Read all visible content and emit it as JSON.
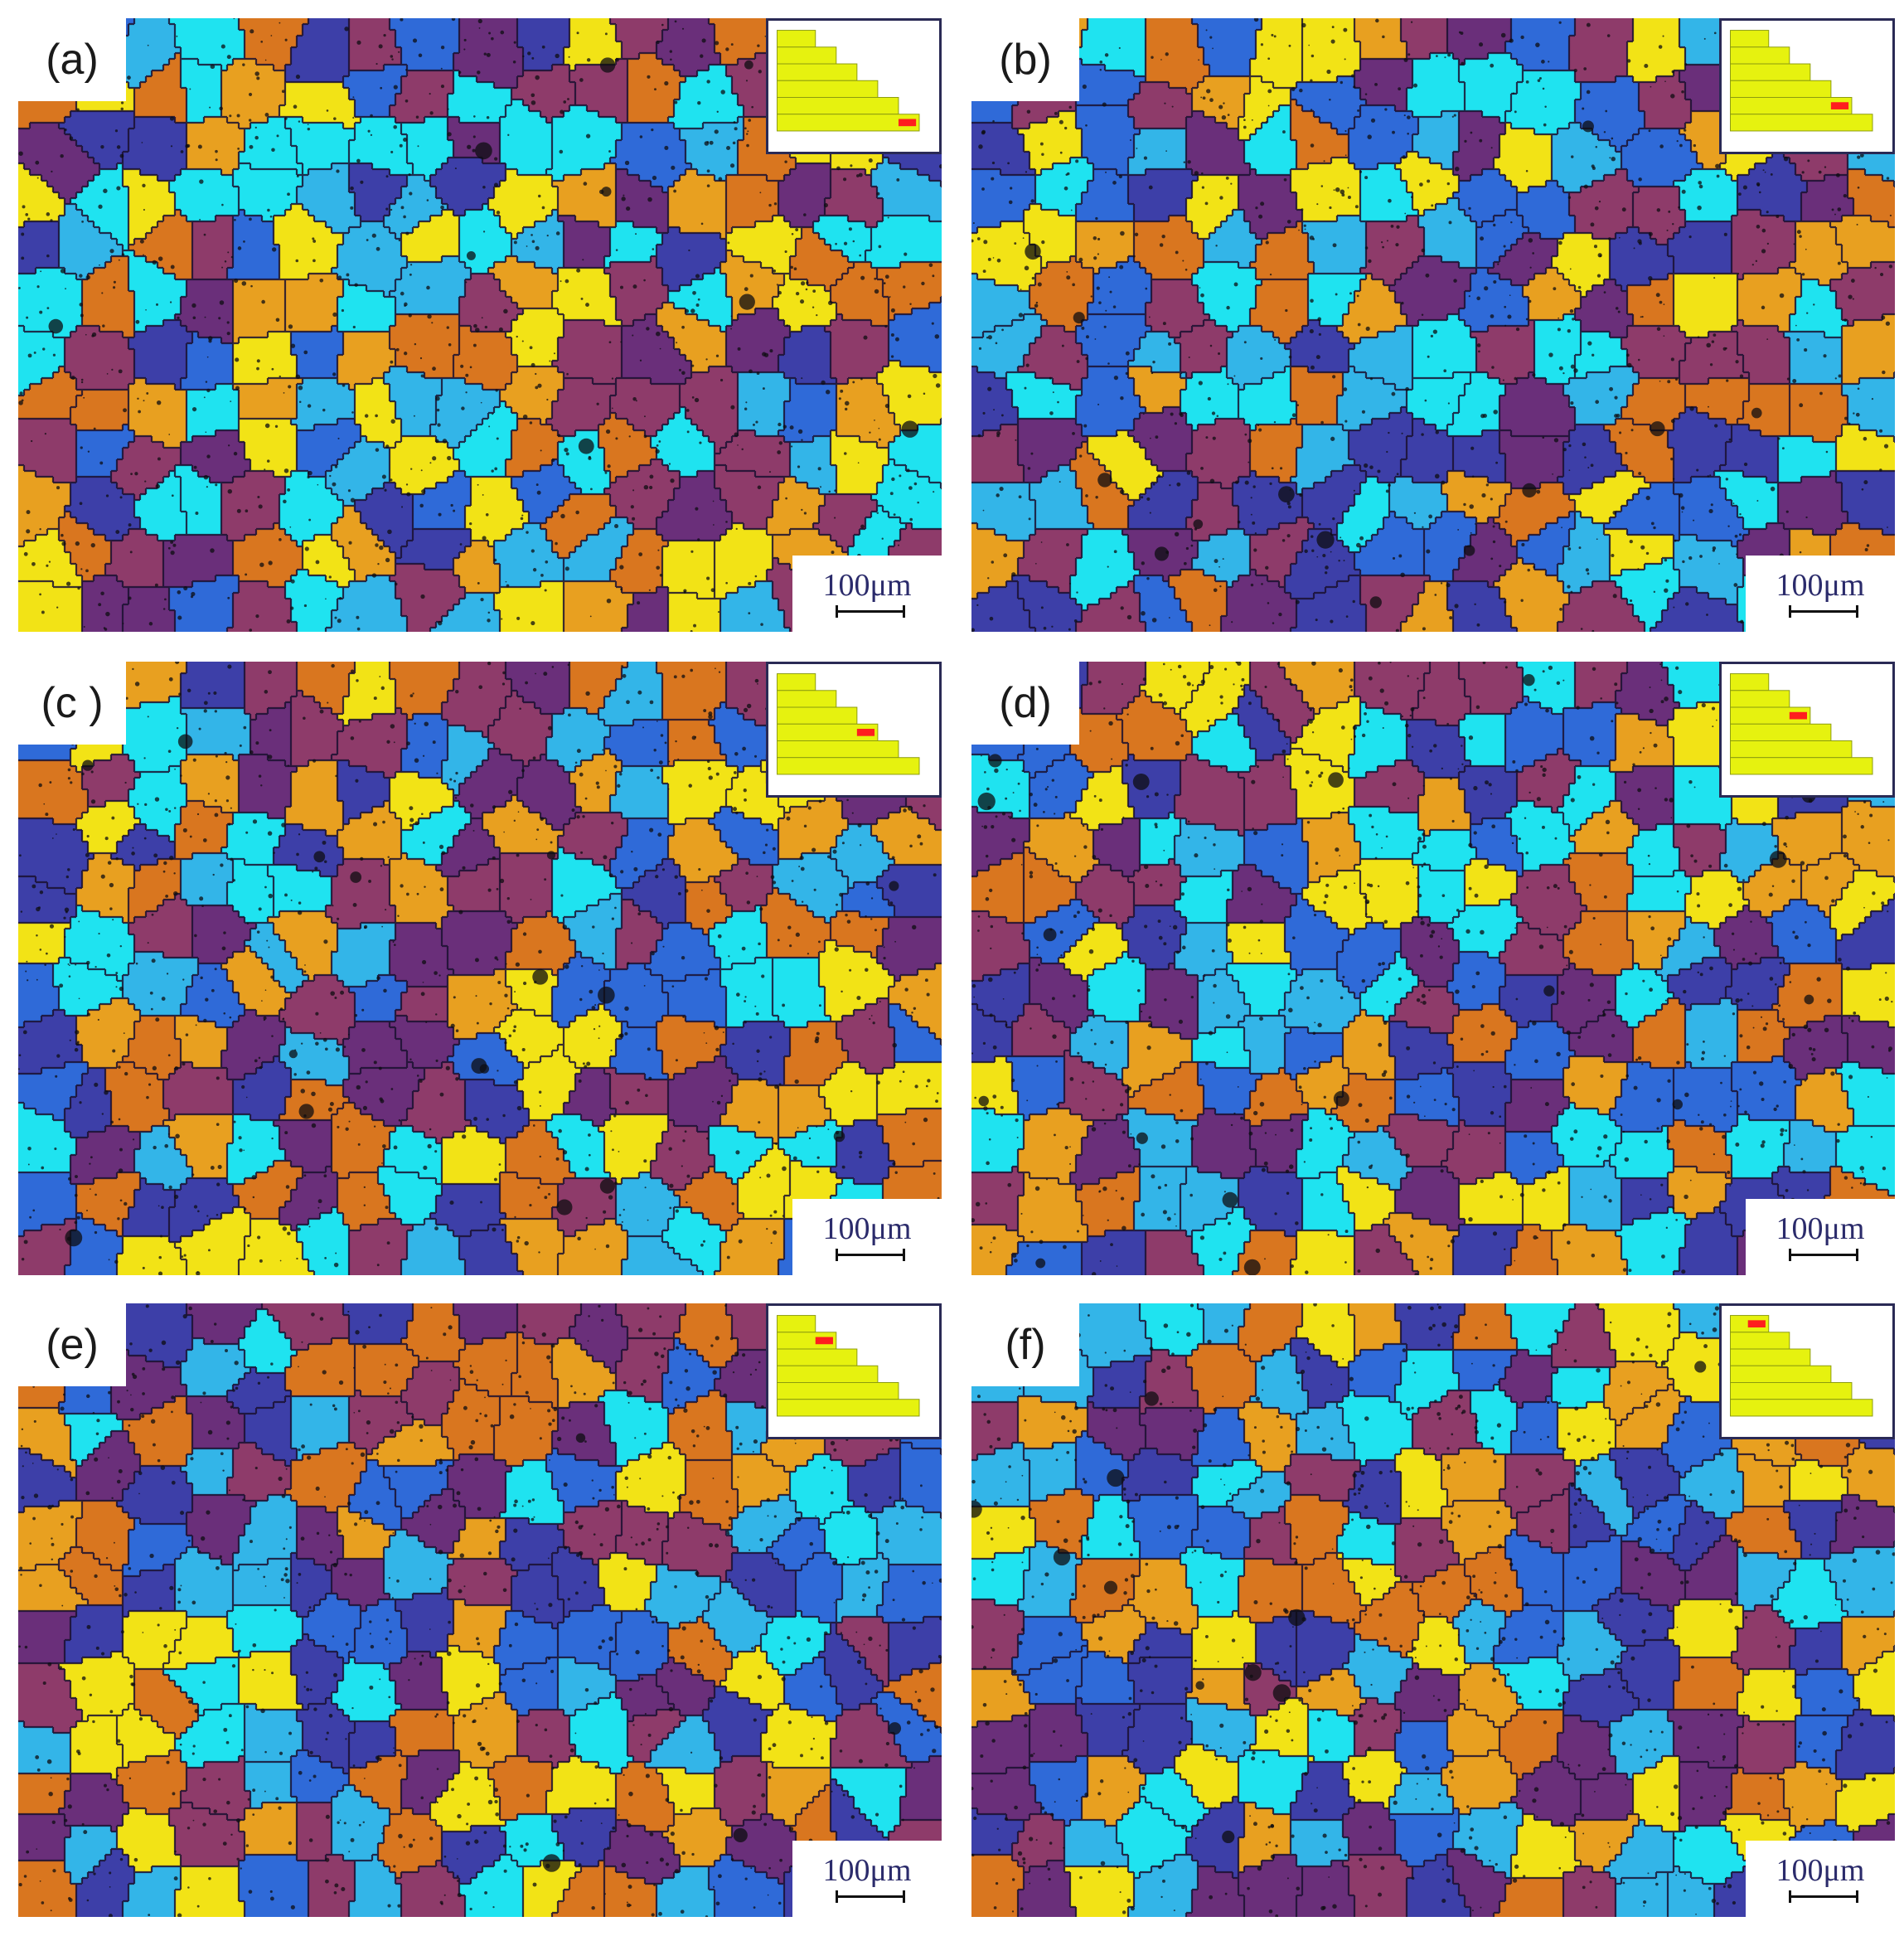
{
  "panels": [
    {
      "id": "a",
      "label": "(a)",
      "scale": "100μm",
      "highlight_step": 6,
      "seed": 11
    },
    {
      "id": "b",
      "label": "(b)",
      "scale": "100μm",
      "highlight_step": 5,
      "seed": 23
    },
    {
      "id": "c",
      "label": "(c )",
      "scale": "100μm",
      "highlight_step": 4,
      "seed": 37
    },
    {
      "id": "d",
      "label": "(d)",
      "scale": "100μm",
      "highlight_step": 3,
      "seed": 51
    },
    {
      "id": "e",
      "label": "(e)",
      "scale": "100μm",
      "highlight_step": 2,
      "seed": 67
    },
    {
      "id": "f",
      "label": "(f)",
      "scale": "100μm",
      "highlight_step": 1,
      "seed": 83
    }
  ],
  "colors": {
    "grains": [
      "#f2e316",
      "#e8a020",
      "#d9761f",
      "#8e3b6a",
      "#6a2f7a",
      "#3d3fa8",
      "#2f6ad8",
      "#33b5e8",
      "#1fe3f0"
    ],
    "boundary": "#1a1030",
    "inset_fill": "#e6f20f",
    "inset_marker": "#ff1e1e"
  }
}
